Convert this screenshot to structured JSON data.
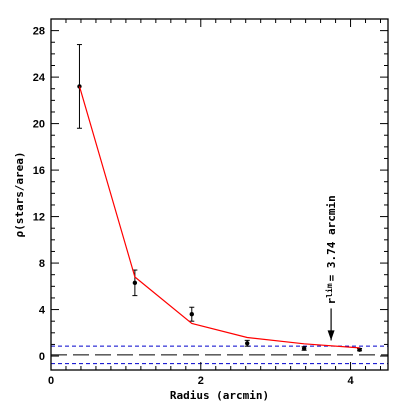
{
  "chart_data": {
    "type": "scatter",
    "xlabel": "Radius (arcmin)",
    "ylabel": "ρ(stars/area)",
    "xlim": [
      0,
      4.5
    ],
    "ylim": [
      -1.2,
      29
    ],
    "xticks": [
      0,
      2,
      4
    ],
    "yticks": [
      0,
      4,
      8,
      12,
      16,
      20,
      24,
      28
    ],
    "grid": false,
    "series": [
      {
        "kind": "points-with-errorbars",
        "color": "#000000",
        "x": [
          0.38,
          1.12,
          1.88,
          2.62,
          3.38,
          4.12
        ],
        "y": [
          23.2,
          6.3,
          3.6,
          1.1,
          0.65,
          0.55
        ],
        "err": [
          3.6,
          1.1,
          0.6,
          0.25,
          0.15,
          0.1
        ]
      },
      {
        "kind": "line",
        "color": "#ff0000",
        "x": [
          0.38,
          1.12,
          1.88,
          2.62,
          3.38,
          4.12
        ],
        "y": [
          23.2,
          6.8,
          2.8,
          1.6,
          1.05,
          0.7
        ]
      }
    ],
    "hlines": [
      {
        "y": 0.1,
        "style": "long-dash",
        "color": "#000000"
      },
      {
        "y": 0.85,
        "style": "dashed",
        "color": "#0000cc"
      },
      {
        "y": -0.65,
        "style": "dashed",
        "color": "#0000cc"
      }
    ],
    "annotation": {
      "r_prefix": "r",
      "r_subscript": "lim",
      "text": "= 3.74 arcmin",
      "arrow_x": 3.74,
      "arrow_tip_y": 1.0
    }
  }
}
